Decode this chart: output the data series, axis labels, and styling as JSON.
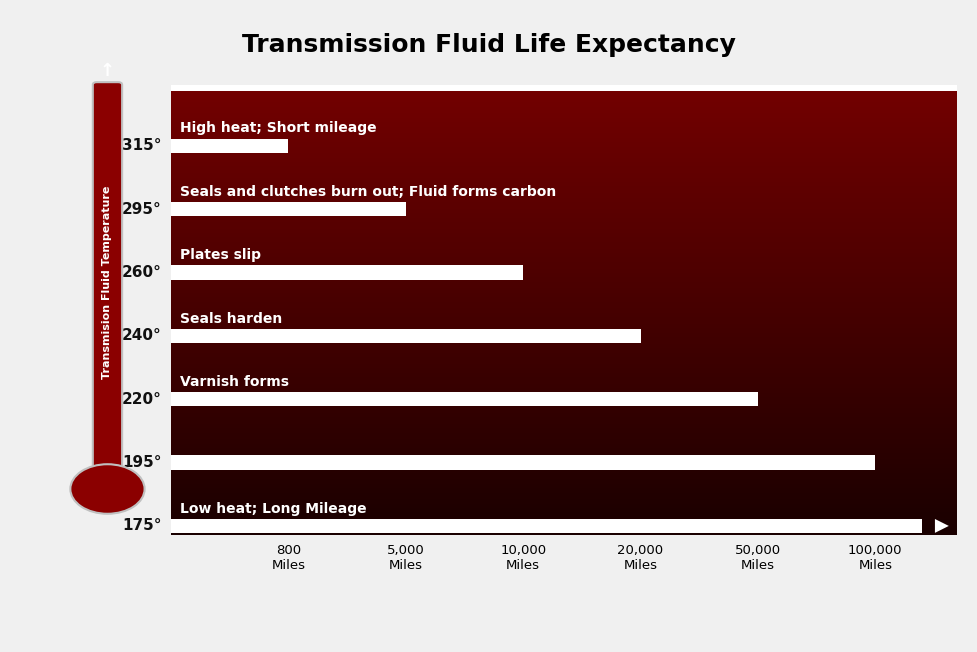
{
  "title": "Transmission Fluid Life Expectancy",
  "ylabel": "Transmision Fluid Temperature",
  "fig_bg": "#f0f0f0",
  "chart_bg_left": "#5a0000",
  "chart_bg_right": "#1a0000",
  "bar_color": "#ffffff",
  "text_color": "#ffffff",
  "title_color": "#000000",
  "temp_label_color": "#111111",
  "temperatures": [
    315,
    295,
    260,
    240,
    220,
    195,
    175
  ],
  "bar_miles": [
    800,
    5000,
    10000,
    20000,
    50000,
    100000,
    999999
  ],
  "labels": [
    "High heat; Short mileage",
    "Seals and clutches burn out; Fluid forms carbon",
    "Plates slip",
    "Seals harden",
    "Varnish forms",
    "",
    "Low heat; Long Mileage"
  ],
  "xtick_positions": [
    1,
    2,
    3,
    4,
    5,
    6
  ],
  "xtick_labels": [
    "800\nMiles",
    "5,000\nMiles",
    "10,000\nMiles",
    "20,000\nMiles",
    "50,000\nMiles",
    "100,000\nMiles"
  ],
  "thermo_color": "#8b0000",
  "thermo_border": "#c0c0c0"
}
